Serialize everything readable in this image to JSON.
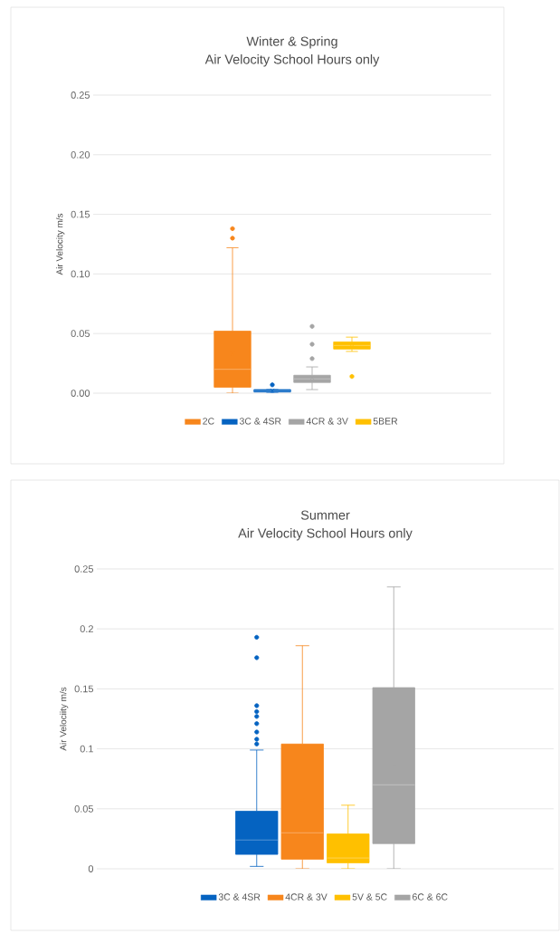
{
  "chart_data": [
    {
      "type": "box",
      "title": "Winter & Spring",
      "subtitle": "Air Velocity School Hours only",
      "ylabel": "Air Velocity m/s",
      "categories": [
        null
      ],
      "ylim": [
        0,
        0.25
      ],
      "yticks": [
        {
          "value": 0,
          "label": "0.00"
        },
        {
          "value": 0.05,
          "label": "0.05"
        },
        {
          "value": 0.1,
          "label": "0.10"
        },
        {
          "value": 0.15,
          "label": "0.15"
        },
        {
          "value": 0.2,
          "label": "0.20"
        },
        {
          "value": 0.25,
          "label": "0.25"
        }
      ],
      "grid": "y",
      "legend": "bottom",
      "tick_labels": "y",
      "series": [
        {
          "name": "2C",
          "color": "#f7861c",
          "boxes": [
            {
              "low": 0.0,
              "q1": 0.005,
              "median": 0.02,
              "q3": 0.052,
              "high": 0.122,
              "mean": 0.033,
              "outliers": [
                0.13,
                0.138
              ]
            }
          ]
        },
        {
          "name": "3C & 4SR",
          "color": "#0563c1",
          "boxes": [
            {
              "low": 0.0,
              "q1": 0.001,
              "median": 0.002,
              "q3": 0.003,
              "high": 0.003,
              "mean": 0.002,
              "outliers": [
                0.007
              ]
            }
          ]
        },
        {
          "name": "4CR & 3V",
          "color": "#a5a5a5",
          "boxes": [
            {
              "low": 0.003,
              "q1": 0.009,
              "median": 0.012,
              "q3": 0.015,
              "high": 0.022,
              "mean": 0.013,
              "outliers": [
                0.029,
                0.041,
                0.056
              ]
            }
          ]
        },
        {
          "name": "5BER",
          "color": "#ffc000",
          "boxes": [
            {
              "low": 0.035,
              "q1": 0.037,
              "median": 0.04,
              "q3": 0.043,
              "high": 0.047,
              "mean": 0.039,
              "outliers": [
                0.014
              ]
            }
          ]
        }
      ]
    },
    {
      "type": "box",
      "title": "Summer",
      "subtitle": "Air Velocity School Hours only",
      "ylabel": "Air Velociity m/s",
      "categories": [
        null
      ],
      "ylim": [
        0,
        0.25
      ],
      "yticks": [
        0,
        0.05,
        0.1,
        0.15,
        0.2,
        0.25
      ],
      "grid": "y",
      "legend": "bottom",
      "tick_labels": "y",
      "series": [
        {
          "name": "3C & 4SR",
          "color": "#0563c1",
          "boxes": [
            {
              "low": 0.002,
              "q1": 0.012,
              "median": 0.024,
              "q3": 0.048,
              "high": 0.099,
              "mean": 0.036,
              "outliers": [
                0.104,
                0.108,
                0.114,
                0.121,
                0.127,
                0.131,
                0.136,
                0.176,
                0.193
              ]
            }
          ]
        },
        {
          "name": "4CR & 3V",
          "color": "#f7861c",
          "boxes": [
            {
              "low": 0.0,
              "q1": 0.008,
              "median": 0.03,
              "q3": 0.104,
              "high": 0.186,
              "mean": 0.057
            }
          ]
        },
        {
          "name": "5V & 5C",
          "color": "#ffc000",
          "boxes": [
            {
              "low": 0.0,
              "q1": 0.005,
              "median": 0.009,
              "q3": 0.029,
              "high": 0.053,
              "mean": 0.016
            }
          ]
        },
        {
          "name": "6C & 6C",
          "color": "#a5a5a5",
          "boxes": [
            {
              "low": 0.0,
              "q1": 0.021,
              "median": 0.07,
              "q3": 0.151,
              "high": 0.235,
              "mean": 0.087
            }
          ]
        }
      ]
    }
  ]
}
